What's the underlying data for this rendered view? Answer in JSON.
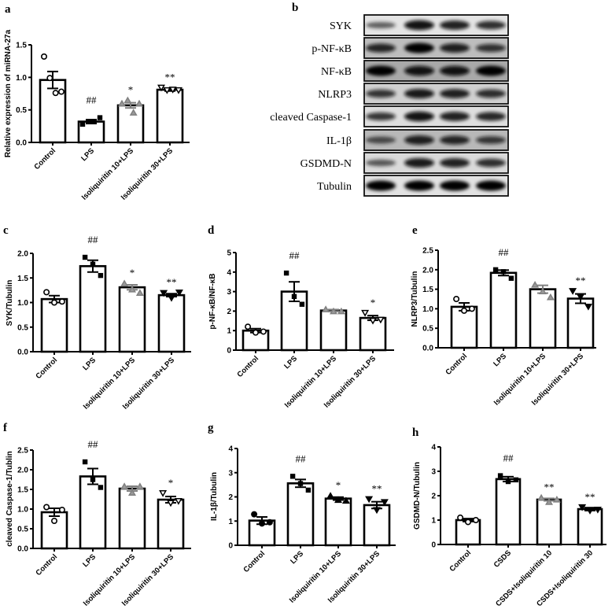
{
  "figure": {
    "panels": [
      "a",
      "b",
      "c",
      "d",
      "e",
      "f",
      "g",
      "h"
    ]
  },
  "western_blot": {
    "panel": "b",
    "rows": [
      "SYK",
      "p-NF-κB",
      "NF-κB",
      "NLRP3",
      "cleaved Caspase-1",
      "IL-1β",
      "GSDMD-N",
      "Tubulin"
    ],
    "lanes": 4
  },
  "colors": {
    "bar_fill": "#ffffff",
    "bar_stroke": "#000000",
    "triangle_gray": "#808080"
  },
  "chart_data": [
    {
      "panel": "a",
      "type": "bar",
      "title": "",
      "xlabel": "",
      "ylabel": "Relative expression of miRNA-27a",
      "categories": [
        "Control",
        "LPS",
        "Isoliquiritin 10+LPS",
        "Isoliquiritin 30+LPS"
      ],
      "values": [
        0.96,
        0.32,
        0.57,
        0.81
      ],
      "errors": [
        0.13,
        0.03,
        0.04,
        0.02
      ],
      "points": [
        [
          1.32,
          0.99,
          0.76,
          0.78
        ],
        [
          0.28,
          0.32,
          0.32,
          0.38
        ],
        [
          0.6,
          0.65,
          0.46,
          0.6
        ],
        [
          0.84,
          0.8,
          0.81,
          0.8
        ]
      ],
      "markers": [
        "circle-open",
        "square-filled",
        "triangle-gray",
        "triangle-down-open"
      ],
      "annotations": [
        "",
        "##",
        "*",
        "**"
      ],
      "yticks": [
        "0.0",
        "0.5",
        "1.0",
        "1.5"
      ],
      "ylim": [
        0,
        1.5
      ],
      "grid": false
    },
    {
      "panel": "c",
      "type": "bar",
      "ylabel": "SYK/Tubulin",
      "categories": [
        "Control",
        "LPS",
        "Isoliquiritin 10+LPS",
        "Isoliquiritin 30+LPS"
      ],
      "values": [
        1.07,
        1.74,
        1.31,
        1.15
      ],
      "errors": [
        0.07,
        0.12,
        0.05,
        0.03
      ],
      "points": [
        [
          1.21,
          1.0,
          1.02
        ],
        [
          1.92,
          1.78,
          1.55
        ],
        [
          1.39,
          1.27,
          1.2
        ],
        [
          1.19,
          1.09,
          1.2
        ]
      ],
      "markers": [
        "circle-open",
        "square-filled",
        "triangle-gray",
        "triangle-down-filled"
      ],
      "annotations": [
        "",
        "##",
        "*",
        "**"
      ],
      "yticks": [
        "0.0",
        "0.5",
        "1.0",
        "1.5",
        "2.0"
      ],
      "ylim": [
        0,
        2.0
      ]
    },
    {
      "panel": "d",
      "type": "bar",
      "ylabel": "p-NF-κB/NF-κB",
      "categories": [
        "Control",
        "LPS",
        "Isoliquiritin 10+LPS",
        "Isoliquiritin 30+LPS"
      ],
      "values": [
        1.0,
        3.0,
        2.03,
        1.65
      ],
      "errors": [
        0.1,
        0.5,
        0.05,
        0.12
      ],
      "points": [
        [
          1.2,
          0.9,
          0.95
        ],
        [
          3.95,
          2.75,
          2.35
        ],
        [
          2.1,
          2.0,
          2.0
        ],
        [
          1.9,
          1.5,
          1.55
        ]
      ],
      "markers": [
        "circle-open",
        "square-filled",
        "triangle-gray",
        "triangle-down-open"
      ],
      "annotations": [
        "",
        "##",
        "",
        "*"
      ],
      "yticks": [
        "0",
        "1",
        "2",
        "3",
        "4",
        "5"
      ],
      "ylim": [
        0,
        5
      ]
    },
    {
      "panel": "e",
      "type": "bar",
      "ylabel": "NLRP3/Tubulin",
      "categories": [
        "Control",
        "LPS",
        "Isoliquiritin 10+LPS",
        "Isoliquiritin 30+LPS"
      ],
      "values": [
        1.05,
        1.92,
        1.5,
        1.26
      ],
      "errors": [
        0.1,
        0.07,
        0.1,
        0.12
      ],
      "points": [
        [
          1.25,
          0.95,
          1.0
        ],
        [
          2.0,
          1.95,
          1.78
        ],
        [
          1.62,
          1.45,
          1.3
        ],
        [
          1.45,
          1.3,
          1.05
        ]
      ],
      "markers": [
        "circle-open",
        "square-filled",
        "triangle-gray",
        "triangle-down-filled"
      ],
      "annotations": [
        "",
        "##",
        "",
        "**"
      ],
      "yticks": [
        "0.0",
        "0.5",
        "1.0",
        "1.5",
        "2.0",
        "2.5"
      ],
      "ylim": [
        0,
        2.5
      ]
    },
    {
      "panel": "f",
      "type": "bar",
      "ylabel": "cleaved Caspase-1/Tublin",
      "categories": [
        "Control",
        "LPS",
        "Isoliquiritin 10+LPS",
        "Isoliquiritin 30+LPS"
      ],
      "values": [
        0.92,
        1.83,
        1.52,
        1.24
      ],
      "errors": [
        0.1,
        0.2,
        0.06,
        0.08
      ],
      "points": [
        [
          1.05,
          0.7,
          0.98
        ],
        [
          2.2,
          1.75,
          1.55
        ],
        [
          1.58,
          1.42,
          1.58
        ],
        [
          1.4,
          1.15,
          1.2
        ]
      ],
      "markers": [
        "circle-open",
        "square-filled",
        "triangle-gray",
        "triangle-down-open"
      ],
      "annotations": [
        "",
        "##",
        "",
        "*"
      ],
      "yticks": [
        "0.0",
        "0.5",
        "1.0",
        "1.5",
        "2.0",
        "2.5"
      ],
      "ylim": [
        0,
        2.5
      ]
    },
    {
      "panel": "g",
      "type": "bar",
      "ylabel": "IL-1β/Tubulin",
      "categories": [
        "Control",
        "LPS",
        "Isoliquiritin 10+LPS",
        "Isoliquiritin 30+LPS"
      ],
      "values": [
        1.02,
        2.56,
        1.93,
        1.66
      ],
      "errors": [
        0.15,
        0.16,
        0.06,
        0.14
      ],
      "points": [
        [
          1.28,
          0.9,
          0.95
        ],
        [
          2.85,
          2.55,
          2.28
        ],
        [
          2.05,
          1.88,
          1.85
        ],
        [
          1.9,
          1.45,
          1.78
        ]
      ],
      "markers": [
        "circle-filled",
        "square-filled",
        "triangle-filled",
        "triangle-down-filled"
      ],
      "annotations": [
        "",
        "##",
        "*",
        "**"
      ],
      "yticks": [
        "0",
        "1",
        "2",
        "3",
        "4"
      ],
      "ylim": [
        0,
        4
      ]
    },
    {
      "panel": "h",
      "type": "bar",
      "ylabel": "GSDMD-N/Tubulin",
      "categories": [
        "Control",
        "CSDS",
        "CSDS+Isoliquiritin 10",
        "CSDS+Isoliquiritin 30"
      ],
      "values": [
        1.0,
        2.68,
        1.84,
        1.45
      ],
      "errors": [
        0.06,
        0.1,
        0.05,
        0.06
      ],
      "points": [
        [
          1.1,
          0.92,
          1.0
        ],
        [
          2.82,
          2.58,
          2.65
        ],
        [
          1.92,
          1.75,
          1.85
        ],
        [
          1.52,
          1.38,
          1.42
        ]
      ],
      "markers": [
        "circle-open",
        "square-filled",
        "triangle-gray",
        "triangle-down-filled"
      ],
      "annotations": [
        "",
        "##",
        "**",
        "**"
      ],
      "yticks": [
        "0",
        "1",
        "2",
        "3",
        "4"
      ],
      "ylim": [
        0,
        4
      ]
    }
  ]
}
